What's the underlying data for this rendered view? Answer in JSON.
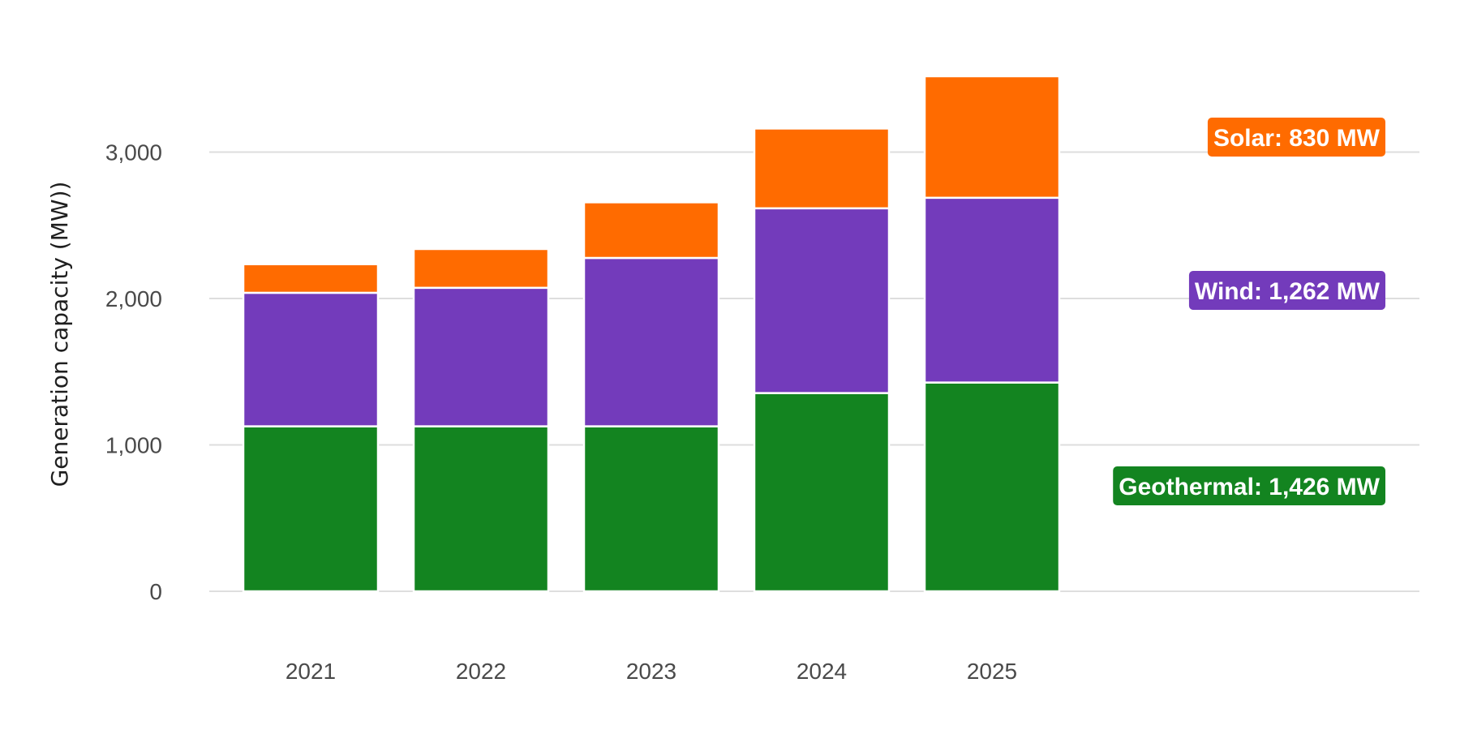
{
  "chart_data": {
    "type": "bar",
    "stacked": true,
    "categories": [
      "2021",
      "2022",
      "2023",
      "2024",
      "2025"
    ],
    "series": [
      {
        "name": "Geothermal",
        "color": "#138420",
        "values": [
          1127,
          1127,
          1127,
          1354,
          1426
        ]
      },
      {
        "name": "Wind",
        "color": "#733bbb",
        "values": [
          912,
          946,
          1150,
          1262,
          1262
        ]
      },
      {
        "name": "Solar",
        "color": "#ff6b00",
        "values": [
          195,
          265,
          380,
          545,
          830
        ]
      }
    ],
    "series_labels": [
      "Solar: 830 MW",
      "Wind: 1,262 MW",
      "Geothermal: 1,426 MW"
    ],
    "title": "",
    "xlabel": "",
    "ylabel": "Generation capacity (MW))",
    "ylim": [
      0,
      3550
    ],
    "yticks": [
      0,
      1000,
      2000,
      3000
    ],
    "ytick_labels": [
      "0",
      "1,000",
      "2,000",
      "3,000"
    ],
    "grid": true,
    "legend": "direct labels at right"
  }
}
